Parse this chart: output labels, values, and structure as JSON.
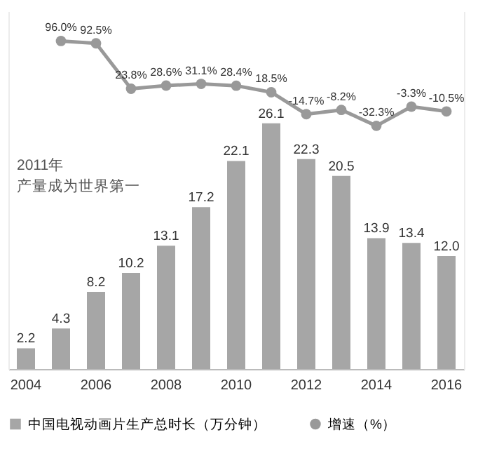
{
  "chart_data": {
    "type": "bar",
    "categories": [
      "2004",
      null,
      "2006",
      null,
      "2008",
      null,
      "2010",
      null,
      "2012",
      null,
      "2014",
      null,
      "2016"
    ],
    "series": [
      {
        "name": "中国电视动画片生产总时长（万分钟）",
        "color": "#a6a6a6",
        "values": [
          2.2,
          4.3,
          8.2,
          10.2,
          13.1,
          17.2,
          22.1,
          26.1,
          22.3,
          20.5,
          13.9,
          13.4,
          12.0
        ],
        "value_labels": [
          "2.2",
          "4.3",
          "8.2",
          "10.2",
          "13.1",
          "17.2",
          "22.1",
          "26.1",
          "22.3",
          "20.5",
          "13.9",
          "13.4",
          "12.0"
        ]
      },
      {
        "name": "增速（%）",
        "type": "line",
        "axis": "y2",
        "color": "#999999",
        "values": [
          null,
          96.0,
          92.5,
          23.8,
          28.6,
          31.1,
          28.4,
          18.5,
          -14.7,
          -8.2,
          -32.3,
          -3.3,
          -10.5
        ],
        "value_labels": [
          null,
          "96.0%",
          "92.5%",
          "23.8%",
          "28.6%",
          "31.1%",
          "28.4%",
          "18.5%",
          "-14.7%",
          "-8.2%",
          "-32.3%",
          "-3.3%",
          "-10.5%"
        ]
      }
    ],
    "annotations": [
      "2011年",
      "产量成为世界第一"
    ],
    "tick_labels": "x",
    "ylim": [
      0,
      38
    ],
    "y2lim": [
      -400,
      141
    ],
    "marker": "circle",
    "legend": "bottom"
  }
}
